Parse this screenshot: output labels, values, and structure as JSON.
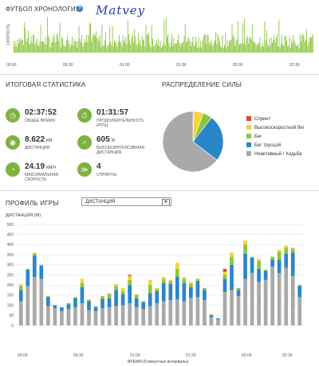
{
  "timeline": {
    "title": "ФУТБОЛ ХРОНОЛОГИЯ",
    "help_icon": "?",
    "signature": "Matvey",
    "y_label": "СКОРОСТЬ",
    "ticks": [
      "00:00",
      "00:30",
      "01:00",
      "01:30",
      "02:00",
      "02:30"
    ]
  },
  "stats": {
    "title": "ИТОГОВАЯ СТАТИСТИКА",
    "items": [
      {
        "icon": "clock-icon",
        "value": "02:37:52",
        "unit": "",
        "label": "ОБЩЕЕ ВРЕМЯ"
      },
      {
        "icon": "stopwatch-icon",
        "value": "01:31:57",
        "unit": "",
        "label": "ПРОДОЛЖИТЕЛЬНОСТЬ ИГРЫ"
      },
      {
        "icon": "distance-icon",
        "value": "8.622",
        "unit": "КМ",
        "label": "ДИСТАНЦИЯ"
      },
      {
        "icon": "runner-icon",
        "value": "605",
        "unit": "М",
        "label": "ВЫСОКОИНТЕНСИВНАЯ ДИСТАНЦИЯ"
      },
      {
        "icon": "speedometer-icon",
        "value": "24.19",
        "unit": "КМ/Ч",
        "label": "МАКСИМАЛЬНАЯ СКОРОСТЬ"
      },
      {
        "icon": "sprint-icon",
        "value": "4",
        "unit": "",
        "label": "СПРИНТЫ"
      }
    ]
  },
  "distribution": {
    "title": "РАСПРЕДЕЛЕНИЕ СИЛЫ",
    "legend": [
      {
        "label": "Спринт",
        "color": "#e4412b"
      },
      {
        "label": "Высокоскоростной бег",
        "color": "#f3d43a"
      },
      {
        "label": "Бег",
        "color": "#8cc63e"
      },
      {
        "label": "Бег трусцой",
        "color": "#2b86c8"
      },
      {
        "label": "Неактивный / Ходьба",
        "color": "#a9a9a9"
      }
    ]
  },
  "profile": {
    "title": "ПРОФИЛЬ ИГРЫ",
    "select_value": "ДИСТАНЦИЯ",
    "y_title": "ДИСТАНЦИЯ (М)",
    "x_title": "ВРЕМЯ (5-минутные интервалы)",
    "y_ticks": [
      "0",
      "50",
      "100",
      "150",
      "200",
      "250",
      "300",
      "350",
      "400",
      "450",
      "500"
    ],
    "x_ticks": [
      "00:00",
      "00:30",
      "01:00",
      "01:30",
      "02:00",
      "02:30"
    ]
  },
  "chart_data": [
    {
      "type": "pie",
      "categories": [
        "Спринт",
        "Высокоскоростной бег",
        "Бег",
        "Бег трусцой",
        "Неактивный / Ходьба"
      ],
      "values": [
        0.5,
        5,
        5,
        25,
        64.5
      ],
      "colors": [
        "#e4412b",
        "#f3d43a",
        "#8cc63e",
        "#2b86c8",
        "#a9a9a9"
      ]
    },
    {
      "type": "bar",
      "stacked": true,
      "ylim": [
        0,
        500
      ],
      "series": [
        {
          "name": "Неактивный / Ходьба",
          "color": "#a9a9a9",
          "values": [
            120,
            195,
            240,
            230,
            95,
            85,
            70,
            80,
            90,
            110,
            75,
            70,
            85,
            90,
            95,
            100,
            110,
            90,
            80,
            95,
            110,
            120,
            125,
            130,
            120,
            135,
            140,
            125,
            40,
            30,
            165,
            175,
            145,
            230,
            260,
            215,
            225,
            290,
            260,
            285,
            245,
            140
          ]
        },
        {
          "name": "Бег трусцой",
          "color": "#2b86c8",
          "values": [
            55,
            80,
            105,
            65,
            45,
            15,
            20,
            25,
            45,
            80,
            45,
            20,
            45,
            45,
            80,
            55,
            90,
            45,
            35,
            65,
            60,
            90,
            80,
            110,
            90,
            55,
            80,
            50,
            10,
            5,
            65,
            125,
            30,
            125,
            75,
            65,
            45,
            35,
            65,
            70,
            115,
            55
          ]
        },
        {
          "name": "Бег",
          "color": "#8cc63e",
          "values": [
            20,
            5,
            10,
            5,
            5,
            0,
            0,
            5,
            5,
            20,
            5,
            5,
            15,
            20,
            20,
            15,
            25,
            15,
            5,
            40,
            10,
            20,
            15,
            40,
            20,
            15,
            10,
            10,
            5,
            0,
            20,
            40,
            10,
            45,
            5,
            40,
            5,
            15,
            40,
            30,
            20,
            5
          ]
        },
        {
          "name": "Высокоскоростной бег",
          "color": "#f3d43a",
          "values": [
            10,
            0,
            5,
            0,
            0,
            0,
            0,
            0,
            0,
            20,
            5,
            0,
            0,
            5,
            10,
            15,
            20,
            5,
            0,
            25,
            5,
            10,
            5,
            30,
            10,
            10,
            0,
            0,
            0,
            0,
            15,
            20,
            0,
            20,
            0,
            10,
            0,
            0,
            10,
            10,
            5,
            0
          ]
        },
        {
          "name": "Спринт",
          "color": "#e4412b",
          "values": [
            0,
            0,
            0,
            0,
            0,
            0,
            0,
            0,
            0,
            0,
            0,
            0,
            0,
            0,
            0,
            0,
            5,
            0,
            0,
            0,
            0,
            0,
            0,
            0,
            0,
            0,
            0,
            0,
            0,
            0,
            15,
            0,
            0,
            0,
            0,
            0,
            0,
            0,
            0,
            0,
            0,
            0
          ]
        }
      ]
    }
  ]
}
